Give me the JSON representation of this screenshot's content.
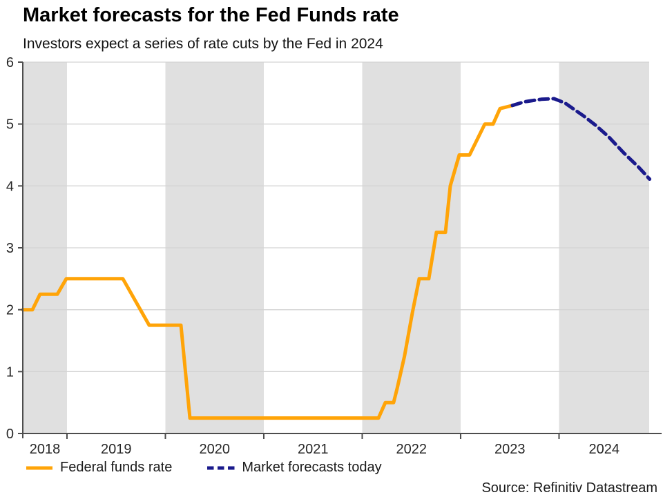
{
  "chart_data": {
    "type": "line",
    "title": "Market forecasts for the Fed Funds rate",
    "subtitle": "Investors expect a series of rate cuts by the Fed in 2024",
    "source": "Source: Refinitiv Datastream",
    "xlabel": "",
    "ylabel": "",
    "xlim": [
      2018.551,
      2024.916
    ],
    "ylim": [
      0,
      6
    ],
    "y_ticks": [
      0,
      1,
      2,
      3,
      4,
      5,
      6
    ],
    "x_year_labels": [
      "2018",
      "2019",
      "2020",
      "2021",
      "2022",
      "2023",
      "2024"
    ],
    "x_year_starts": [
      2018,
      2019,
      2020,
      2021,
      2022,
      2023,
      2024
    ],
    "shaded_years": [
      2018,
      2020,
      2022,
      2024
    ],
    "grid": "horizontal",
    "legend_position": "bottom-left",
    "colors": {
      "band": "#e0e0e0",
      "grid": "#d3d3d3",
      "axis": "#4d4d4d",
      "tick_label": "#262626",
      "federal_funds": "#FFA408",
      "forecast": "#1A1A8C"
    },
    "series": [
      {
        "name": "Federal funds rate",
        "color": "#FFA408",
        "line_style": "solid",
        "width": 5,
        "points": [
          [
            2018.551,
            2.0
          ],
          [
            2018.649,
            2.0
          ],
          [
            2018.726,
            2.25
          ],
          [
            2018.902,
            2.25
          ],
          [
            2018.993,
            2.5
          ],
          [
            2019.568,
            2.5
          ],
          [
            2019.835,
            1.75
          ],
          [
            2020.158,
            1.75
          ],
          [
            2020.249,
            0.25
          ],
          [
            2022.165,
            0.25
          ],
          [
            2022.235,
            0.5
          ],
          [
            2022.319,
            0.5
          ],
          [
            2022.354,
            0.72
          ],
          [
            2022.43,
            1.25
          ],
          [
            2022.51,
            1.95
          ],
          [
            2022.579,
            2.5
          ],
          [
            2022.677,
            2.5
          ],
          [
            2022.754,
            3.25
          ],
          [
            2022.846,
            3.25
          ],
          [
            2022.895,
            4.0
          ],
          [
            2022.986,
            4.5
          ],
          [
            2023.091,
            4.5
          ],
          [
            2023.246,
            5.0
          ],
          [
            2023.33,
            5.0
          ],
          [
            2023.4,
            5.25
          ],
          [
            2023.526,
            5.3
          ]
        ]
      },
      {
        "name": "Market forecasts today",
        "color": "#1A1A8C",
        "line_style": "dashed",
        "dash": "13 7",
        "width": 5,
        "points": [
          [
            2023.526,
            5.3
          ],
          [
            2023.65,
            5.36
          ],
          [
            2023.82,
            5.4
          ],
          [
            2023.95,
            5.41
          ],
          [
            2024.06,
            5.34
          ],
          [
            2024.25,
            5.13
          ],
          [
            2024.38,
            4.97
          ],
          [
            2024.5,
            4.8
          ],
          [
            2024.66,
            4.53
          ],
          [
            2024.81,
            4.3
          ],
          [
            2024.92,
            4.11
          ]
        ]
      }
    ]
  }
}
